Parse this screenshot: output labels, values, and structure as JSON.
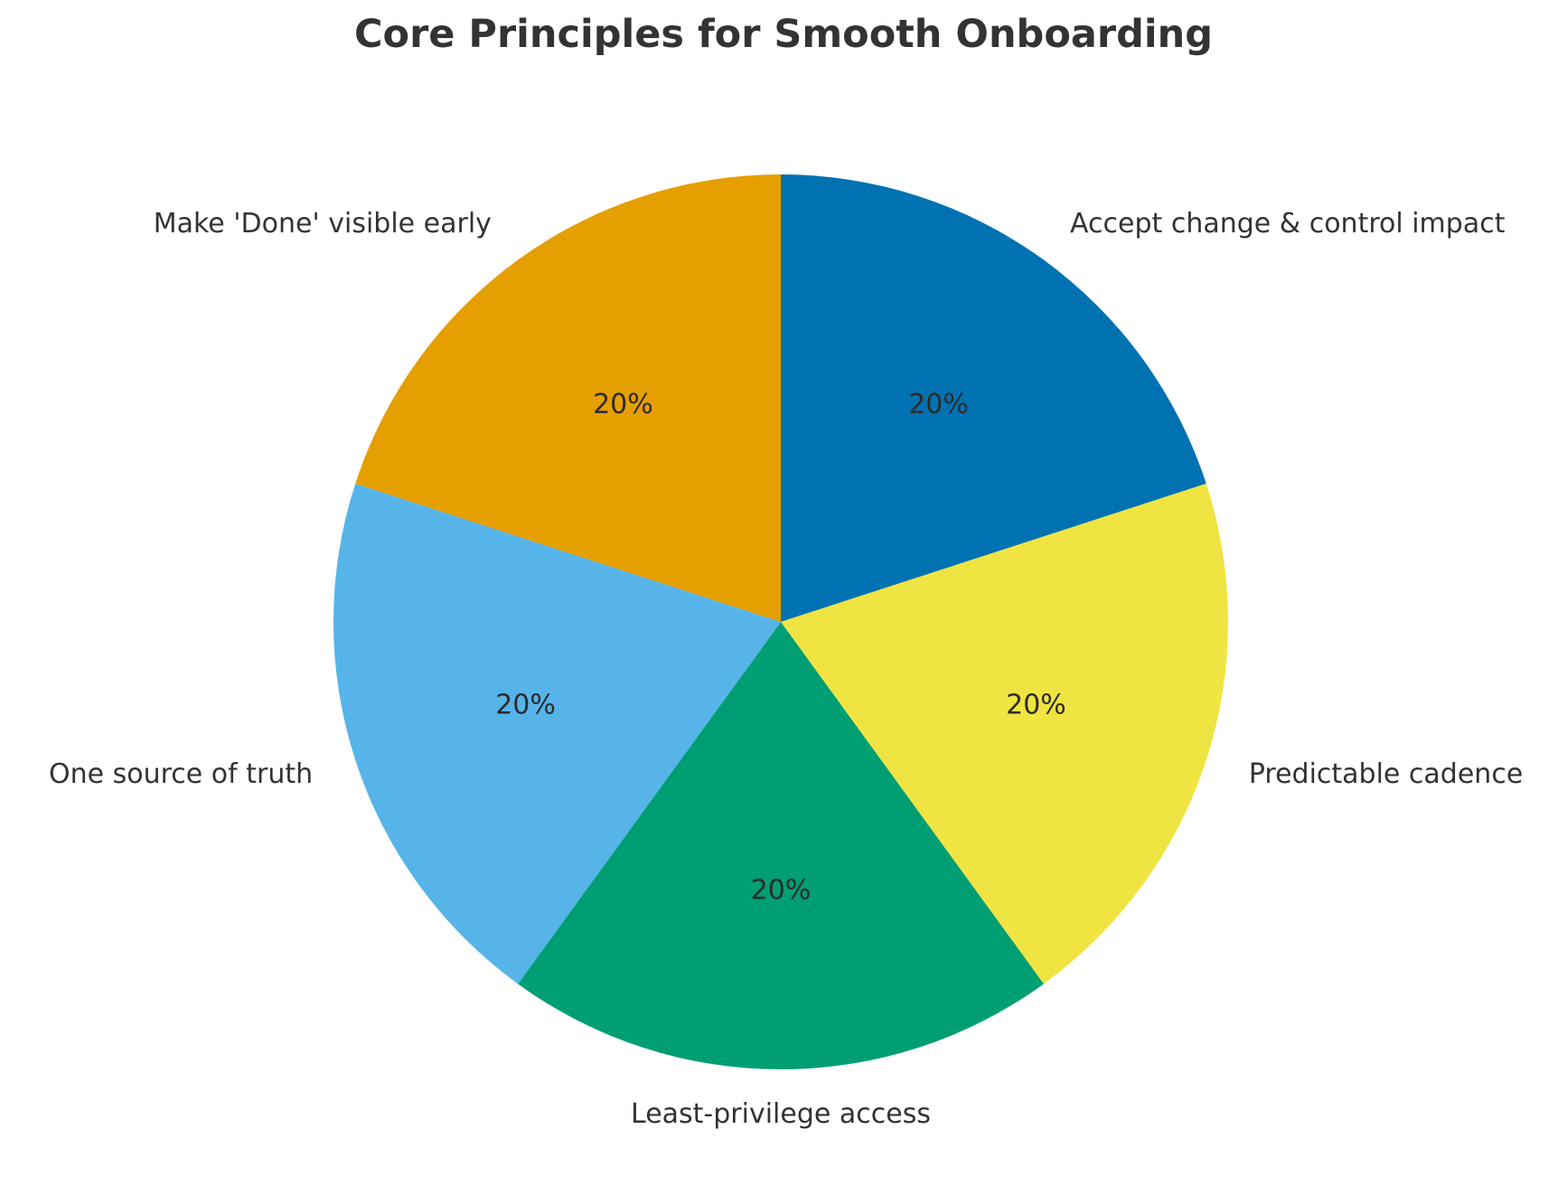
{
  "chart_data": {
    "type": "pie",
    "title": "Core Principles for Smooth Onboarding",
    "start_angle_deg": 90,
    "direction": "clockwise",
    "categories": [
      "Accept change & control impact",
      "Predictable cadence",
      "Least-privilege access",
      "One source of truth",
      "Make 'Done' visible early"
    ],
    "values": [
      20,
      20,
      20,
      20,
      20
    ],
    "percent_labels": [
      "20%",
      "20%",
      "20%",
      "20%",
      "20%"
    ],
    "colors": [
      "#0072B2",
      "#F0E442",
      "#009E73",
      "#56B4E9",
      "#E69F00"
    ],
    "legend": "none",
    "grid": false
  }
}
